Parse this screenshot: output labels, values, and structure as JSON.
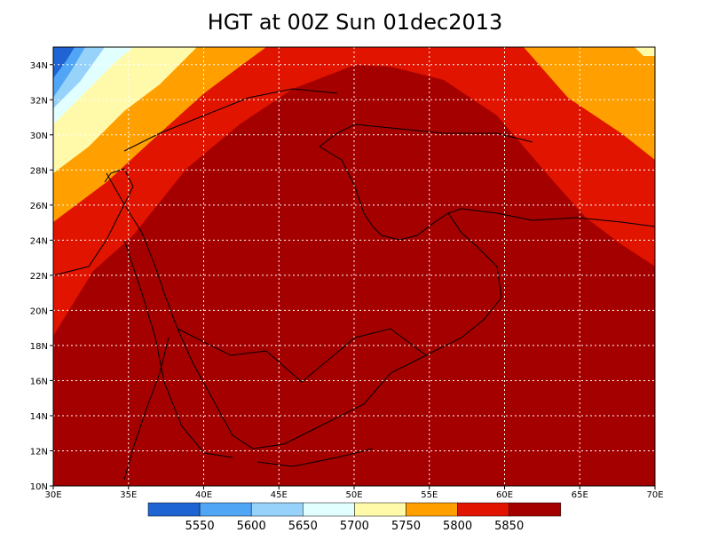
{
  "title": "HGT at 00Z Sun 01dec2013",
  "map": {
    "xlim": [
      30,
      70
    ],
    "ylim": [
      10,
      35
    ],
    "xticks": [
      {
        "value": 30,
        "label": "30E"
      },
      {
        "value": 35,
        "label": "35E"
      },
      {
        "value": 40,
        "label": "40E"
      },
      {
        "value": 45,
        "label": "45E"
      },
      {
        "value": 50,
        "label": "50E"
      },
      {
        "value": 55,
        "label": "55E"
      },
      {
        "value": 60,
        "label": "60E"
      },
      {
        "value": 65,
        "label": "65E"
      },
      {
        "value": 70,
        "label": "70E"
      }
    ],
    "yticks": [
      {
        "value": 10,
        "label": "10N"
      },
      {
        "value": 12,
        "label": "12N"
      },
      {
        "value": 14,
        "label": "14N"
      },
      {
        "value": 16,
        "label": "16N"
      },
      {
        "value": 18,
        "label": "18N"
      },
      {
        "value": 20,
        "label": "20N"
      },
      {
        "value": 22,
        "label": "22N"
      },
      {
        "value": 24,
        "label": "24N"
      },
      {
        "value": 26,
        "label": "26N"
      },
      {
        "value": 28,
        "label": "28N"
      },
      {
        "value": 30,
        "label": "30N"
      },
      {
        "value": 32,
        "label": "32N"
      },
      {
        "value": 34,
        "label": "34N"
      }
    ],
    "grid": true
  },
  "colorbar": {
    "levels": [
      5550,
      5600,
      5650,
      5700,
      5750,
      5800,
      5850
    ],
    "colors": [
      "#1e64d2",
      "#50a5f5",
      "#96d2fa",
      "#e1ffff",
      "#fffaaa",
      "#ffa000",
      "#e11400",
      "#a50000"
    ]
  }
}
